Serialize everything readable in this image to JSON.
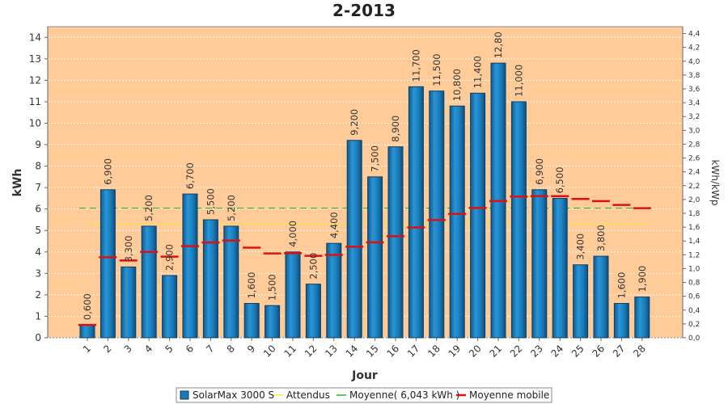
{
  "chart_data": {
    "type": "bar",
    "title": "2-2013",
    "xlabel": "Jour",
    "ylabel": "kWh",
    "ylabel_right": "kWh/kWp",
    "ylim": [
      0,
      14.5
    ],
    "ylim_right": [
      0,
      4.5
    ],
    "yticks": [
      0,
      1,
      2,
      3,
      4,
      5,
      6,
      7,
      8,
      9,
      10,
      11,
      12,
      13,
      14
    ],
    "yticks_right": [
      "0,0",
      "0,2",
      "0,4",
      "0,6",
      "0,8",
      "1,0",
      "1,2",
      "1,4",
      "1,6",
      "1,8",
      "2,0",
      "2,2",
      "2,4",
      "2,6",
      "2,8",
      "3,0",
      "3,2",
      "3,4",
      "3,6",
      "3,8",
      "4,0",
      "4,2",
      "4,4"
    ],
    "categories": [
      "1",
      "2",
      "3",
      "4",
      "5",
      "6",
      "7",
      "8",
      "9",
      "10",
      "11",
      "12",
      "13",
      "14",
      "15",
      "16",
      "17",
      "18",
      "19",
      "20",
      "21",
      "22",
      "23",
      "24",
      "25",
      "26",
      "27",
      "28"
    ],
    "series": [
      {
        "name": "SolarMax 3000 S",
        "kind": "bar",
        "color": "#1a7ab8",
        "values": [
          0.6,
          6.9,
          3.3,
          5.2,
          2.9,
          6.7,
          5.5,
          5.2,
          1.6,
          1.5,
          4.0,
          2.5,
          4.4,
          9.2,
          7.5,
          8.9,
          11.7,
          11.5,
          10.8,
          11.4,
          12.8,
          11.0,
          6.9,
          6.5,
          3.4,
          3.8,
          1.6,
          1.9
        ],
        "labels": [
          "0,600",
          "6,900",
          "3,300",
          "5,200",
          "2,900",
          "6,700",
          "5,500",
          "5,200",
          "1,600",
          "1,500",
          "4,000",
          "2,500",
          "4,400",
          "9,200",
          "7,500",
          "8,900",
          "11,700",
          "11,500",
          "10,800",
          "11,400",
          "12,80",
          "11,000",
          "6,900",
          "6,500",
          "3,400",
          "3,800",
          "1,600",
          "1,900"
        ]
      },
      {
        "name": "Attendus",
        "kind": "hline",
        "color": "#f2e24a",
        "value": 5.3
      },
      {
        "name": "Moyenne( 6,043 kWh )",
        "kind": "hline-dashed",
        "color": "#2bb52b",
        "value": 6.043
      },
      {
        "name": "Moyenne mobile",
        "kind": "markers",
        "color": "#dd1111",
        "values": [
          0.6,
          3.75,
          3.6,
          4.0,
          3.78,
          4.27,
          4.44,
          4.53,
          4.2,
          3.93,
          3.94,
          3.82,
          3.86,
          4.24,
          4.45,
          4.73,
          5.14,
          5.49,
          5.77,
          6.05,
          6.37,
          6.58,
          6.6,
          6.6,
          6.47,
          6.37,
          6.19,
          6.04
        ]
      }
    ],
    "legend_position": "bottom",
    "background": "#ffcc99",
    "grid": true
  }
}
